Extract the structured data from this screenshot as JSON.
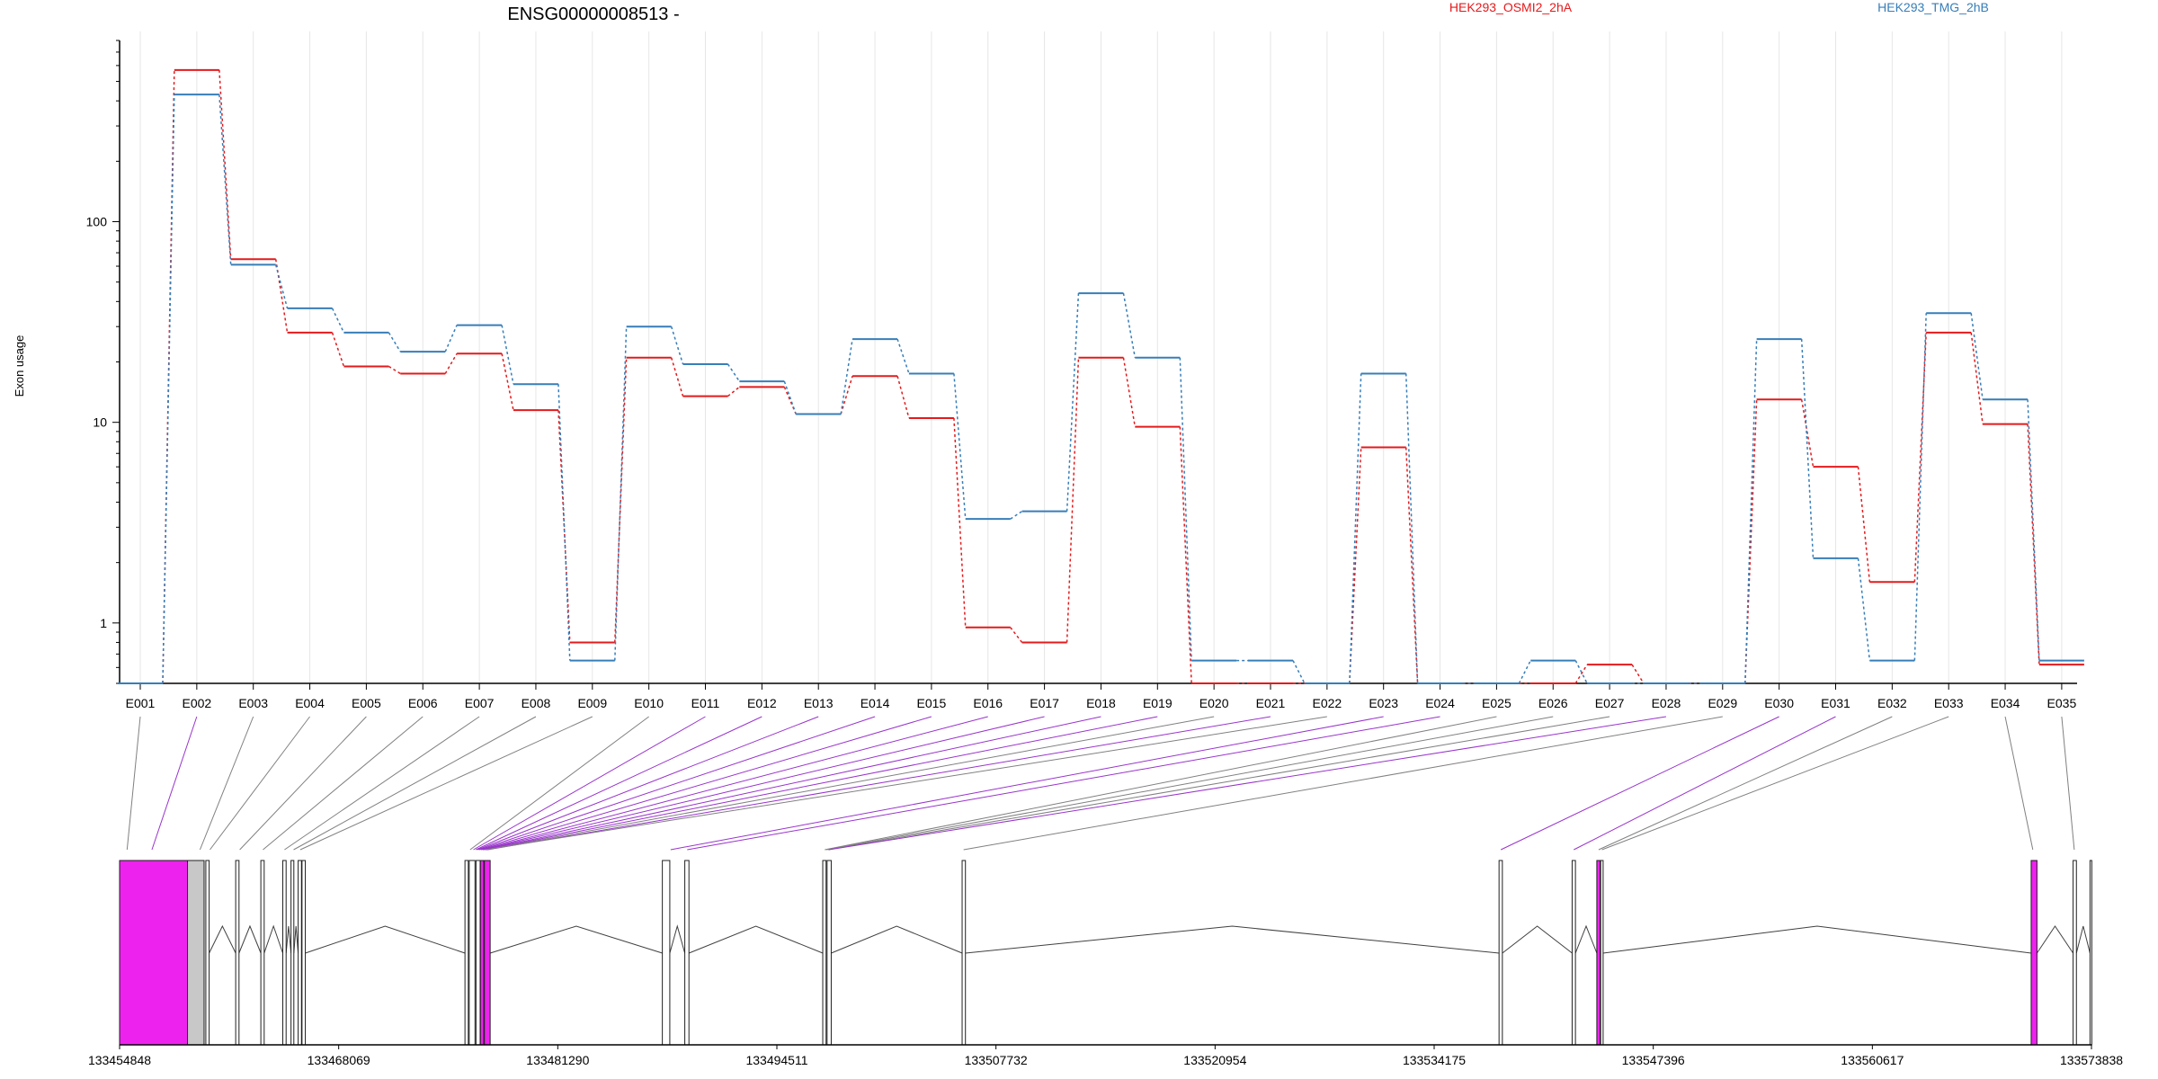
{
  "title": "ENSG00000008513 -",
  "ylabel": "Exon usage",
  "colors": {
    "series_1": "#e41a1c",
    "series_2": "#377eb8",
    "magenta": "#ee22ee",
    "grey_fill": "#c8c8c8",
    "axis": "#000000",
    "grid": "#e6e6e6",
    "connector_gray": "#808080",
    "connector_purple": "#9933cc"
  },
  "chart_data": {
    "type": "line",
    "title": "ENSG00000008513 -",
    "xlabel": "",
    "ylabel": "Exon usage",
    "yscale": "log",
    "ylim": [
      0.5,
      800
    ],
    "yticks": [
      1,
      10,
      100
    ],
    "grid": "vertical",
    "legend_position": "top",
    "categories": [
      "E001",
      "E002",
      "E003",
      "E004",
      "E005",
      "E006",
      "E007",
      "E008",
      "E009",
      "E010",
      "E011",
      "E012",
      "E013",
      "E014",
      "E015",
      "E016",
      "E017",
      "E018",
      "E019",
      "E020",
      "E021",
      "E022",
      "E023",
      "E024",
      "E025",
      "E026",
      "E027",
      "E028",
      "E029",
      "E030",
      "E031",
      "E032",
      "E033",
      "E034",
      "E035"
    ],
    "series": [
      {
        "name": "HEK293_OSMI2_2hA",
        "color": "#e41a1c",
        "values": [
          0.5,
          570,
          65,
          28,
          19,
          17.5,
          22,
          11.5,
          0.8,
          21,
          13.5,
          15,
          11,
          17,
          10.5,
          0.95,
          0.8,
          21,
          9.5,
          0.5,
          0.5,
          0.5,
          7.5,
          0.5,
          0.5,
          0.5,
          0.62,
          0.5,
          0.5,
          13,
          6,
          1.6,
          28,
          9.8,
          0.62
        ]
      },
      {
        "name": "HEK293_TMG_2hB",
        "color": "#377eb8",
        "values": [
          0.5,
          430,
          61,
          37,
          28,
          22.5,
          30.5,
          15.5,
          0.65,
          30,
          19.5,
          16,
          11,
          26,
          17.5,
          3.3,
          3.6,
          44,
          21,
          0.65,
          0.65,
          0.5,
          17.5,
          0.5,
          0.5,
          0.65,
          0.5,
          0.5,
          0.5,
          26,
          2.1,
          0.65,
          35,
          13,
          0.65
        ]
      }
    ],
    "genome_coords": {
      "range": [
        133454848,
        133573838
      ],
      "ticks": [
        "133454848",
        "133468069",
        "133481290",
        "133494511",
        "133507732",
        "133520954",
        "133534175",
        "133547396",
        "133560617",
        "133573838"
      ],
      "exons": [
        [
          133454848,
          133458948
        ],
        [
          133458948,
          133459948
        ],
        [
          133460052,
          133460252
        ],
        [
          133461854,
          133462054
        ],
        [
          133463373,
          133463573
        ],
        [
          133464697,
          133464897
        ],
        [
          133465193,
          133465363
        ],
        [
          133465623,
          133465823
        ],
        [
          133465855,
          133466055
        ],
        [
          133475690,
          133475890
        ],
        [
          133475945,
          133476295
        ],
        [
          133476355,
          133476605
        ],
        [
          133476620,
          133476820
        ],
        [
          133476860,
          133477210
        ],
        [
          133487600,
          133488050
        ],
        [
          133488955,
          133489205
        ],
        [
          133497280,
          133497480
        ],
        [
          133497540,
          133497790
        ],
        [
          133505690,
          133505890
        ],
        [
          133538090,
          133538290
        ],
        [
          133542500,
          133542700
        ],
        [
          133543990,
          133544190
        ],
        [
          133544220,
          133544370
        ],
        [
          133570200,
          133570550
        ],
        [
          133572730,
          133572930
        ],
        [
          133573750,
          133573838
        ]
      ]
    }
  }
}
